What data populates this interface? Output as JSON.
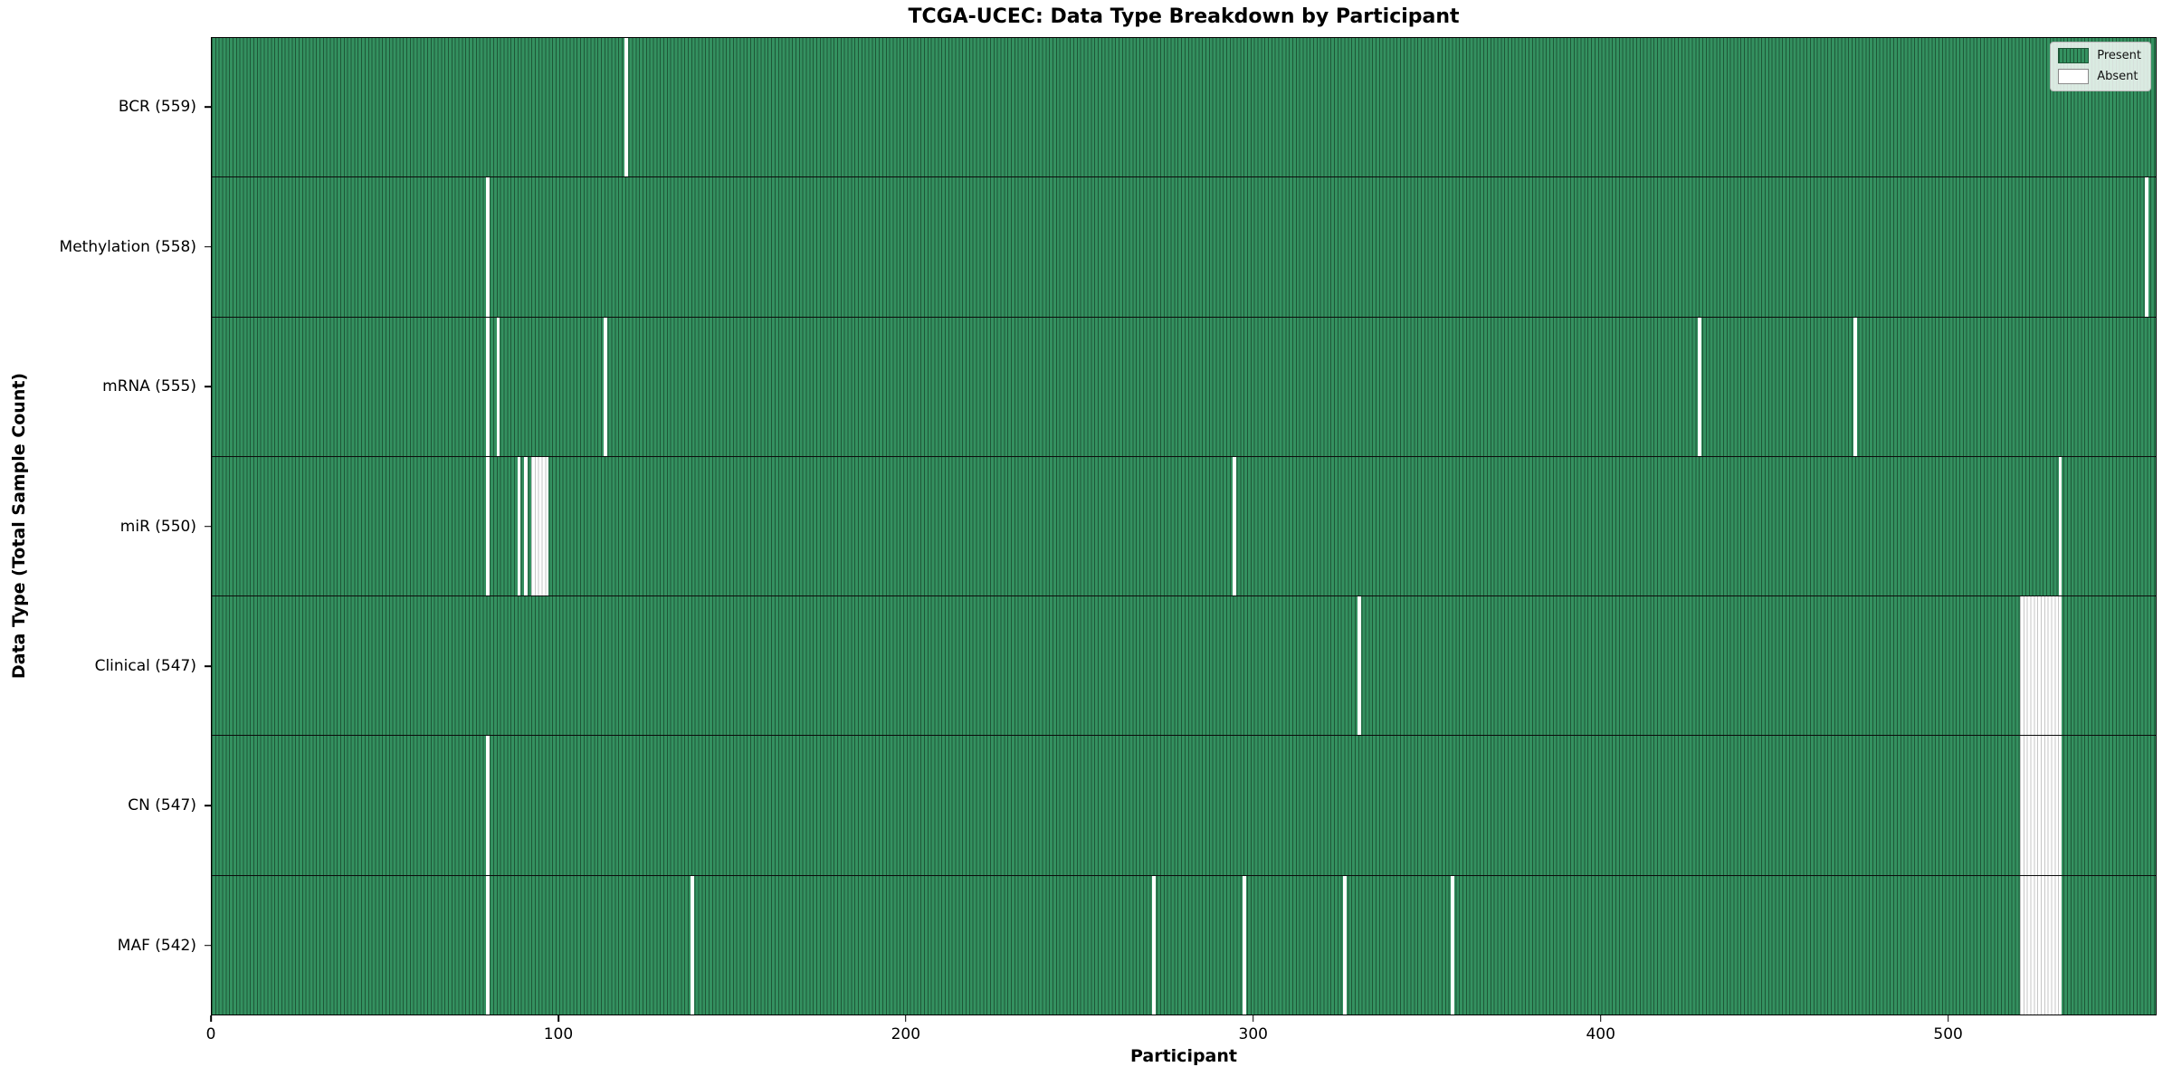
{
  "chart_data": {
    "type": "heatmap",
    "title": "TCGA-UCEC: Data Type Breakdown by Participant",
    "xlabel": "Participant",
    "ylabel": "Data Type (Total Sample Count)",
    "x_max": 560,
    "x_ticks": [
      0,
      100,
      200,
      300,
      400,
      500
    ],
    "grid": false,
    "legend_position": "upper right",
    "colors": {
      "present": "#349160",
      "present_edge": "#1e5737",
      "absent": "#ffffff",
      "absent_edge": "#c6c6c6",
      "plot_border": "#000000"
    },
    "legend": [
      {
        "label": "Present",
        "color": "#349160"
      },
      {
        "label": "Absent",
        "color": "#ffffff"
      }
    ],
    "rows": [
      {
        "name": "bcr",
        "label": "BCR (559)",
        "present_count": 559,
        "absent_ranges": [
          {
            "start": 119,
            "end": 119
          }
        ]
      },
      {
        "name": "methylation",
        "label": "Methylation (558)",
        "present_count": 558,
        "absent_ranges": [
          {
            "start": 79,
            "end": 79
          },
          {
            "start": 557,
            "end": 557
          }
        ]
      },
      {
        "name": "mrna",
        "label": "mRNA (555)",
        "present_count": 555,
        "absent_ranges": [
          {
            "start": 79,
            "end": 79
          },
          {
            "start": 82,
            "end": 82
          },
          {
            "start": 113,
            "end": 113
          },
          {
            "start": 428,
            "end": 428
          },
          {
            "start": 473,
            "end": 473
          }
        ]
      },
      {
        "name": "mir",
        "label": "miR (550)",
        "present_count": 550,
        "absent_ranges": [
          {
            "start": 79,
            "end": 79
          },
          {
            "start": 88,
            "end": 88
          },
          {
            "start": 90,
            "end": 90
          },
          {
            "start": 92,
            "end": 96
          },
          {
            "start": 294,
            "end": 294
          },
          {
            "start": 532,
            "end": 532
          }
        ]
      },
      {
        "name": "clinical",
        "label": "Clinical (547)",
        "present_count": 547,
        "absent_ranges": [
          {
            "start": 330,
            "end": 330
          },
          {
            "start": 521,
            "end": 532
          }
        ]
      },
      {
        "name": "cn",
        "label": "CN (547)",
        "present_count": 547,
        "absent_ranges": [
          {
            "start": 79,
            "end": 79
          },
          {
            "start": 521,
            "end": 532
          }
        ]
      },
      {
        "name": "maf",
        "label": "MAF (542)",
        "present_count": 542,
        "absent_ranges": [
          {
            "start": 79,
            "end": 79
          },
          {
            "start": 138,
            "end": 138
          },
          {
            "start": 271,
            "end": 271
          },
          {
            "start": 297,
            "end": 297
          },
          {
            "start": 326,
            "end": 326
          },
          {
            "start": 357,
            "end": 357
          },
          {
            "start": 521,
            "end": 532
          }
        ]
      }
    ]
  }
}
